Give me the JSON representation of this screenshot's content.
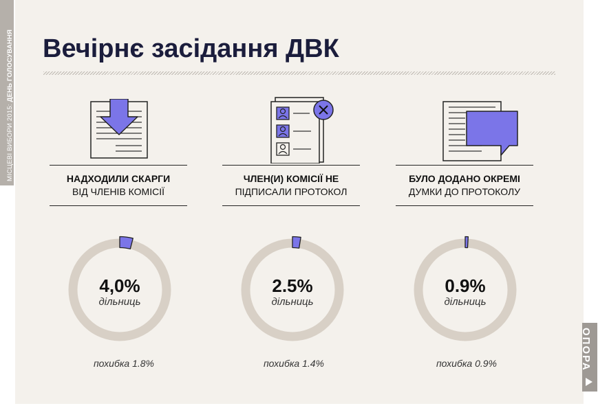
{
  "side_label": {
    "normal": "МІСЦЕВІ ВИБОРИ 2015: ",
    "bold": "ДЕНЬ ГОЛОСУВАННЯ"
  },
  "title": "Вечірнє засідання ДВК",
  "brand": "ОПОРА",
  "colors": {
    "accent": "#7b75e8",
    "ring": "#d8d0c6",
    "background": "#f4f1ec",
    "text": "#1b1d3c"
  },
  "chart_data": {
    "type": "pie",
    "items": [
      {
        "label_line1": "НАДХОДИЛИ СКАРГИ",
        "label_line2": "ВІД ЧЛЕНІВ КОМІСІЇ",
        "value": 4.0,
        "value_label": "4,0%",
        "unit": "дільниць",
        "error": "похибка 1.8%",
        "icon": "document-download-icon"
      },
      {
        "label_line1": "ЧЛЕН(И) КОМІСІЇ НЕ",
        "label_line2": "ПІДПИСАЛИ ПРОТОКОЛ",
        "value": 2.5,
        "value_label": "2.5%",
        "unit": "дільниць",
        "error": "похибка 1.4%",
        "icon": "unsigned-protocol-icon"
      },
      {
        "label_line1": "БУЛО ДОДАНО ОКРЕМІ",
        "label_line2": "ДУМКИ ДО ПРОТОКОЛУ",
        "value": 0.9,
        "value_label": "0.9%",
        "unit": "дільниць",
        "error": "похибка 0.9%",
        "icon": "document-comment-icon"
      }
    ]
  }
}
